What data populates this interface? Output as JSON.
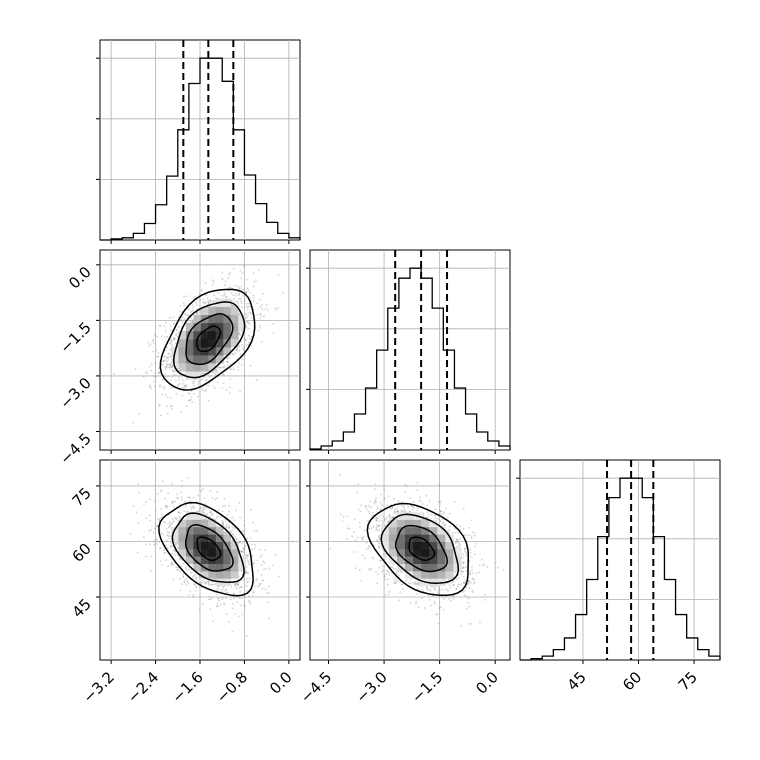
{
  "chart_data": {
    "type": "corner",
    "title": "",
    "parameters": [
      {
        "name": "",
        "range": [
          -3.4,
          0.2
        ],
        "ticks": [
          -3.2,
          -2.4,
          -1.6,
          -0.8,
          0.0
        ],
        "tick_labels": [
          "−3.2",
          "−2.4",
          "−1.6",
          "−0.8",
          "0.0"
        ],
        "quantiles": [
          -1.9,
          -1.45,
          -1.0
        ],
        "mean": -1.45,
        "sd": 0.42
      },
      {
        "name": "",
        "range": [
          -5.0,
          0.4
        ],
        "ticks": [
          -4.5,
          -3.0,
          -1.5,
          0.0
        ],
        "tick_labels": [
          "−4.5",
          "−3.0",
          "−1.5",
          "0.0"
        ],
        "quantiles": [
          -2.7,
          -2.0,
          -1.3
        ],
        "mean": -2.0,
        "sd": 0.68
      },
      {
        "name": "",
        "range": [
          28,
          82
        ],
        "ticks": [
          45,
          60,
          75
        ],
        "tick_labels": [
          "45",
          "60",
          "75"
        ],
        "quantiles": [
          51.5,
          58.0,
          64.0
        ],
        "mean": 58.0,
        "sd": 6.2
      }
    ],
    "histograms": [
      {
        "param": 0,
        "bin_edges": [
          -3.4,
          -3.2,
          -3.0,
          -2.8,
          -2.6,
          -2.4,
          -2.2,
          -2.0,
          -1.8,
          -1.6,
          -1.4,
          -1.2,
          -1.0,
          -0.8,
          -0.6,
          -0.4,
          -0.2,
          0.0,
          0.2
        ],
        "counts": [
          0,
          1,
          2,
          6,
          15,
          32,
          58,
          100,
          142,
          165,
          165,
          144,
          100,
          59,
          33,
          16,
          6,
          2
        ]
      },
      {
        "param": 1,
        "bin_edges": [
          -5.0,
          -4.7,
          -4.4,
          -4.1,
          -3.8,
          -3.5,
          -3.2,
          -2.9,
          -2.6,
          -2.3,
          -2.0,
          -1.7,
          -1.4,
          -1.1,
          -0.8,
          -0.5,
          -0.2,
          0.1,
          0.4
        ],
        "counts": [
          1,
          4,
          9,
          18,
          36,
          62,
          100,
          142,
          172,
          182,
          172,
          142,
          100,
          62,
          36,
          18,
          9,
          4
        ]
      },
      {
        "param": 2,
        "bin_edges": [
          28,
          31,
          34,
          37,
          40,
          43,
          46,
          49,
          52,
          55,
          58,
          61,
          64,
          67,
          70,
          73,
          76,
          79,
          82
        ],
        "counts": [
          0,
          1,
          3,
          8,
          17,
          35,
          62,
          95,
          125,
          140,
          140,
          125,
          95,
          62,
          35,
          17,
          8,
          3
        ]
      }
    ],
    "pairs": [
      {
        "x_param": 0,
        "y_param": 1,
        "correlation": 0.45
      },
      {
        "x_param": 0,
        "y_param": 2,
        "correlation": -0.45
      },
      {
        "x_param": 1,
        "y_param": 2,
        "correlation": -0.38
      }
    ],
    "quantile_levels": [
      0.16,
      0.5,
      0.84
    ],
    "contour_levels_sigma": [
      0.5,
      1.0,
      1.5,
      2.0
    ],
    "grid": true
  }
}
